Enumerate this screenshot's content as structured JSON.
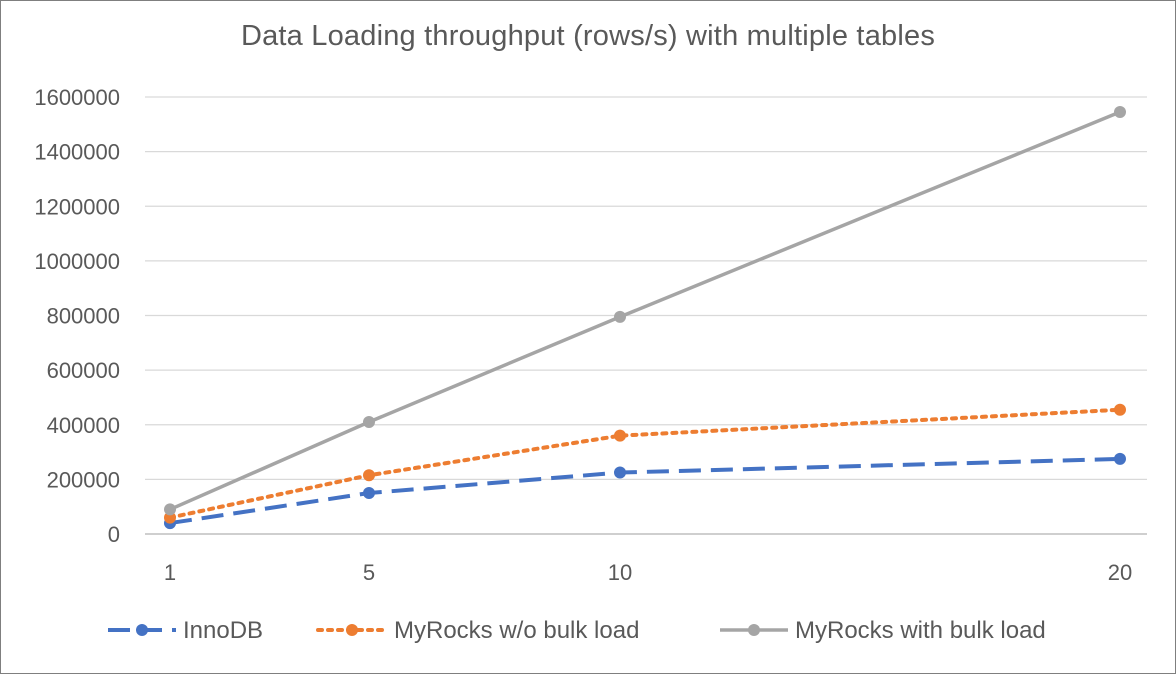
{
  "chart_data": {
    "type": "line",
    "title": "Data Loading throughput (rows/s) with multiple tables",
    "xlabel": "",
    "ylabel": "",
    "categories": [
      "1",
      "5",
      "10",
      "20"
    ],
    "x_tick_labels": [
      "1",
      "5",
      "10",
      "20"
    ],
    "y_tick_labels": [
      "0",
      "200000",
      "400000",
      "600000",
      "800000",
      "1000000",
      "1200000",
      "1400000",
      "1600000"
    ],
    "ylim": [
      0,
      1600000
    ],
    "grid": "horizontal",
    "legend_position": "bottom",
    "series": [
      {
        "name": "InnoDB",
        "values": [
          40000,
          150000,
          225000,
          275000
        ],
        "color": "#4472C4",
        "line_style": "dash"
      },
      {
        "name": "MyRocks w/o bulk load",
        "values": [
          60000,
          215000,
          360000,
          455000
        ],
        "color": "#ED7D31",
        "line_style": "dot"
      },
      {
        "name": "MyRocks with bulk load",
        "values": [
          90000,
          410000,
          795000,
          1545000
        ],
        "color": "#A5A5A5",
        "line_style": "solid"
      }
    ]
  }
}
